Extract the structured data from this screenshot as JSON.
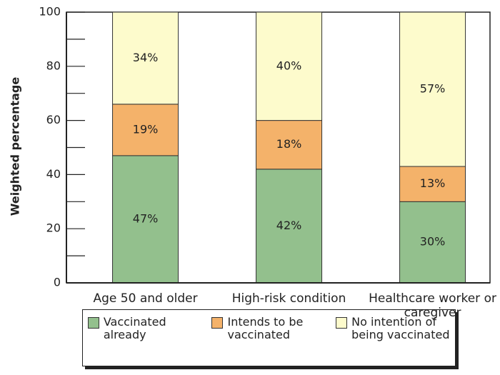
{
  "chart_data": {
    "type": "stacked_bar",
    "y_label": "Weighted percentage",
    "categories": [
      "Age 50 and older",
      "High-risk condition",
      "Healthcare worker or caregiver"
    ],
    "series": [
      {
        "name": "Vaccinated already",
        "color": "#93c08d",
        "values": [
          47,
          42,
          30
        ],
        "value_labels": [
          "47%",
          "42%",
          "30%"
        ]
      },
      {
        "name": "Intends to be vaccinated",
        "color": "#f4b26a",
        "values": [
          19,
          18,
          13
        ],
        "value_labels": [
          "19%",
          "18%",
          "13%"
        ]
      },
      {
        "name": "No intention of being vaccinated",
        "color": "#fdfbcc",
        "values": [
          34,
          40,
          57
        ],
        "value_labels": [
          "34%",
          "40%",
          "57%"
        ]
      }
    ],
    "ylim": [
      0,
      100
    ],
    "yticks": [
      0,
      20,
      40,
      60,
      80,
      100
    ],
    "yticks_minor": [
      10,
      30,
      50,
      70,
      90
    ]
  }
}
